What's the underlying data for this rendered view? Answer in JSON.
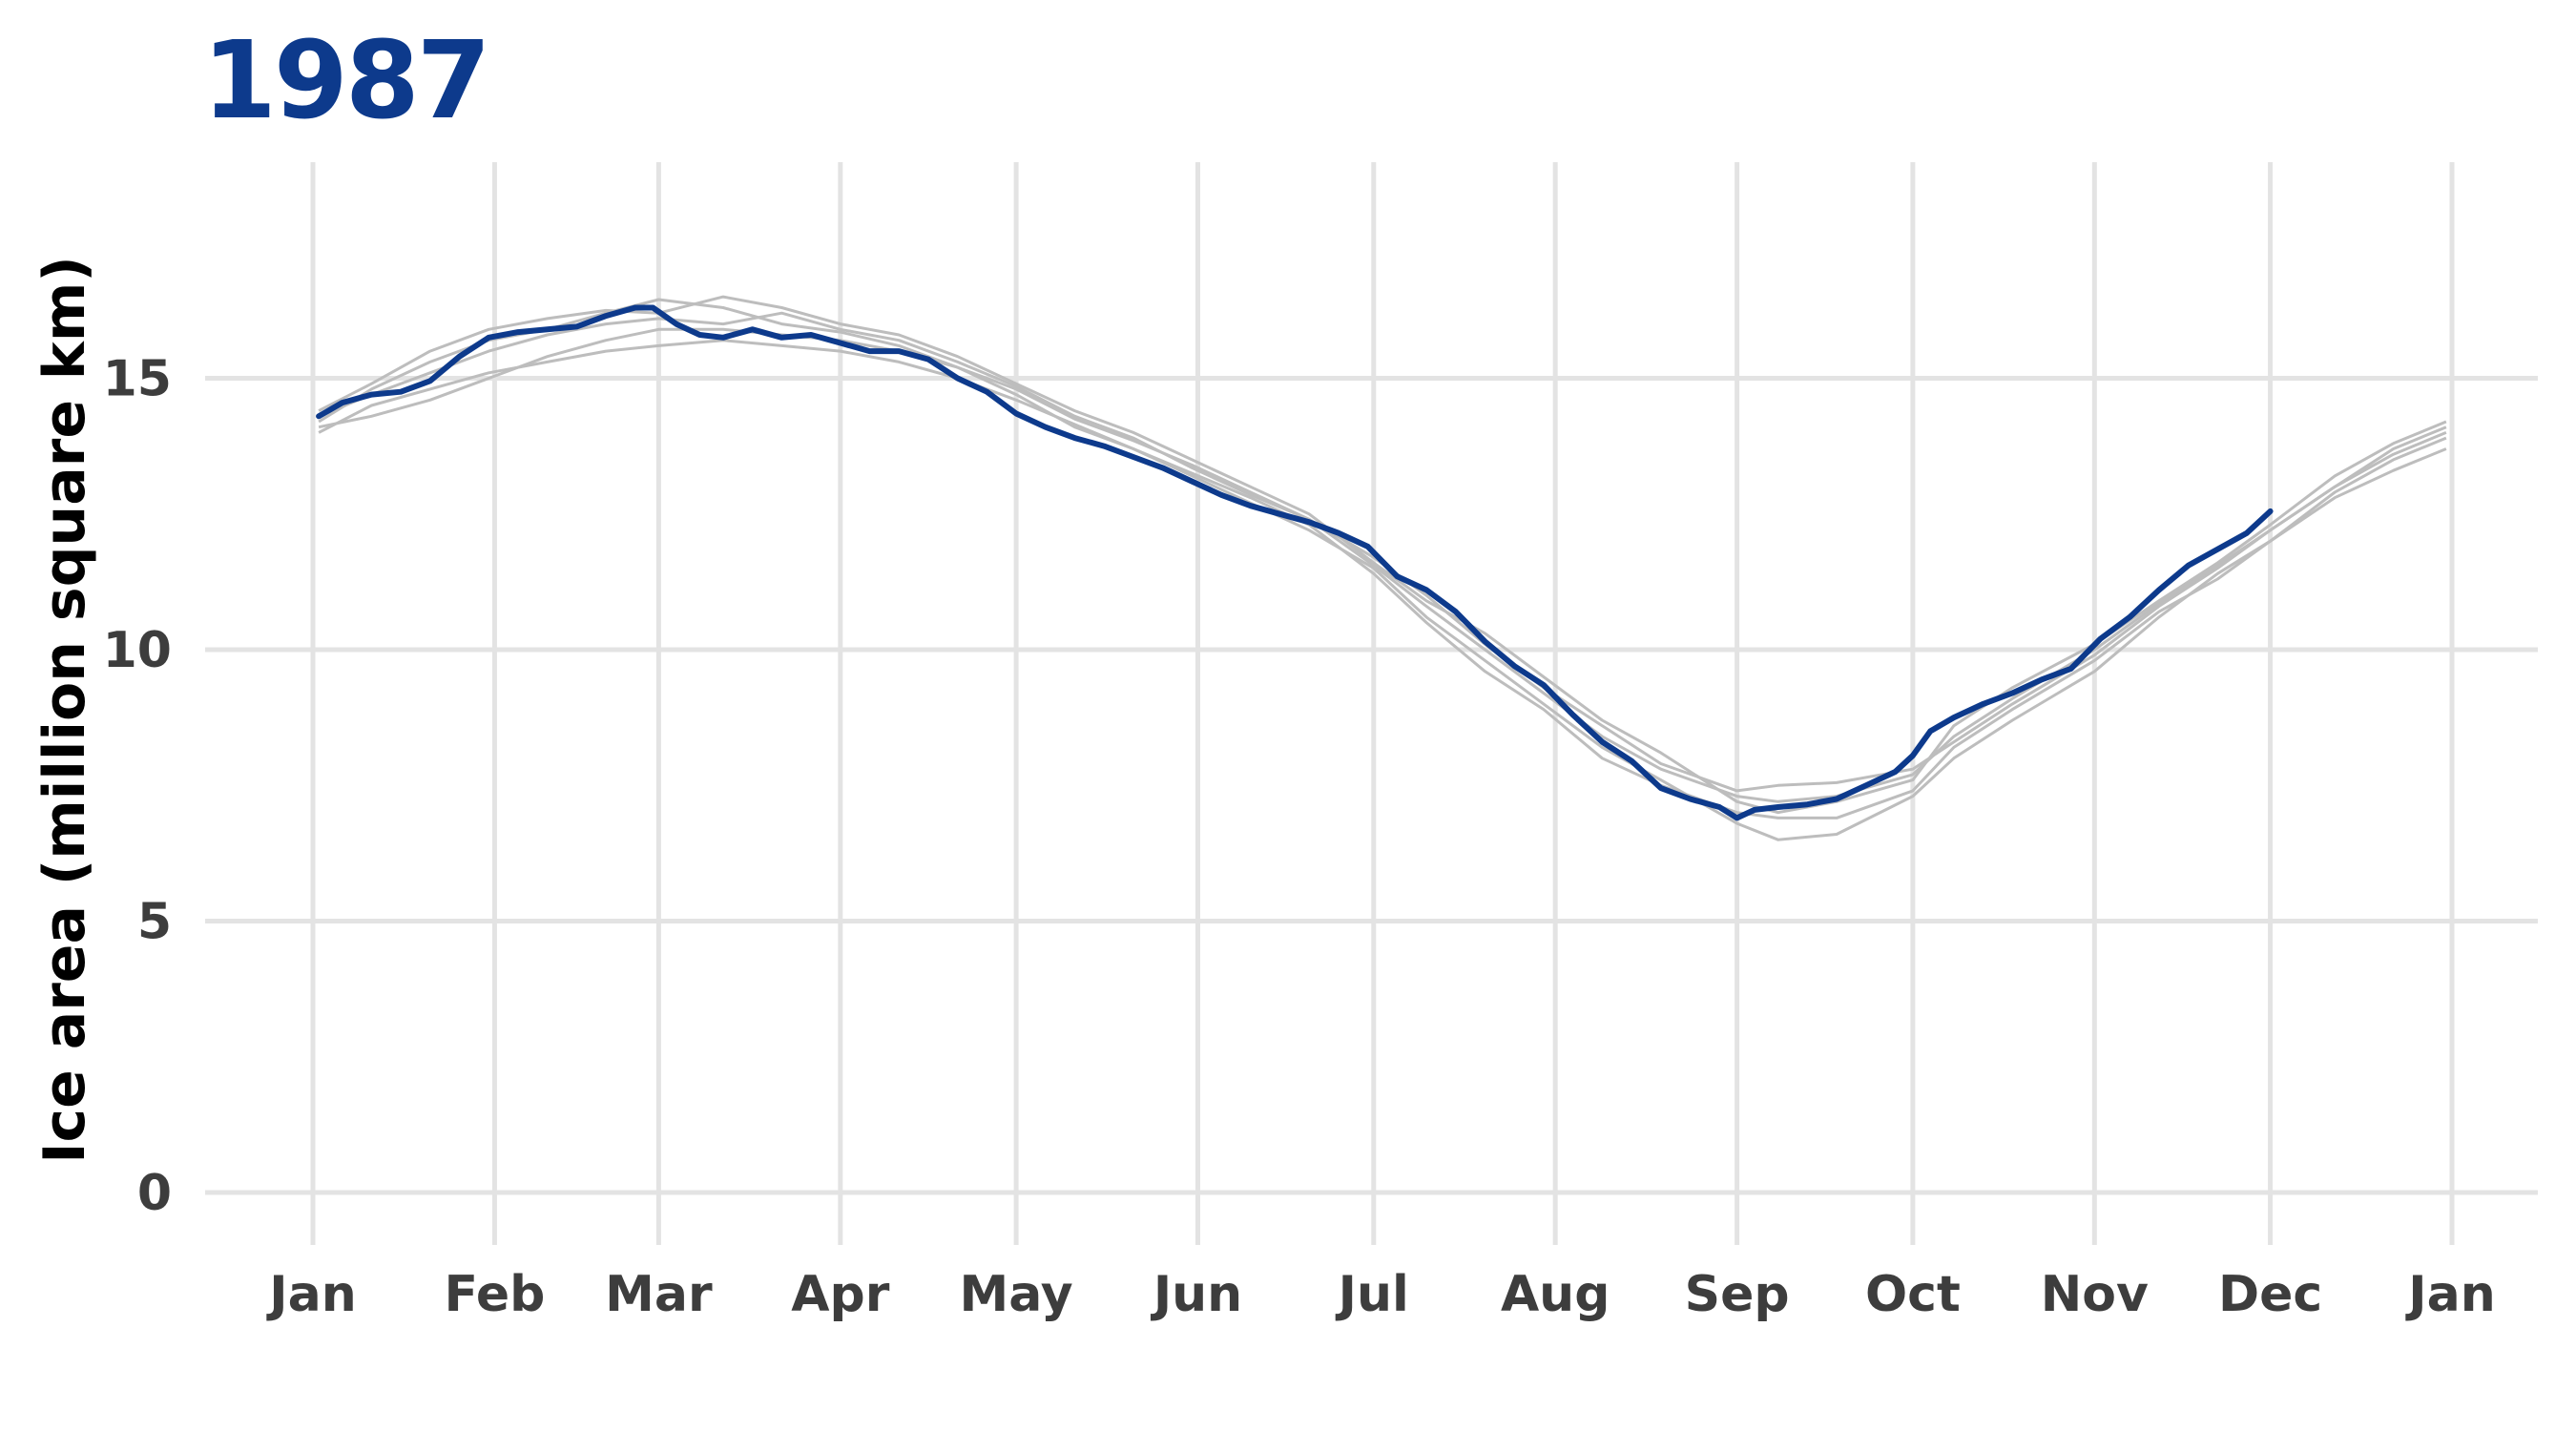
{
  "colors": {
    "title": "#0d3a8c",
    "highlight": "#0d3a8c",
    "background_series": "#bdbdbd",
    "grid": "#e3e3e3"
  },
  "chart_data": {
    "type": "line",
    "title": "1987",
    "xlabel": "",
    "ylabel": "Ice area (million square km)",
    "xlim": [
      0,
      365
    ],
    "ylim": [
      -1,
      18.7
    ],
    "grid": true,
    "legend": "none",
    "x_ticks": [
      {
        "label": "Jan",
        "value": 0
      },
      {
        "label": "Feb",
        "value": 31
      },
      {
        "label": "Mar",
        "value": 59
      },
      {
        "label": "Apr",
        "value": 90
      },
      {
        "label": "May",
        "value": 120
      },
      {
        "label": "Jun",
        "value": 151
      },
      {
        "label": "Jul",
        "value": 181
      },
      {
        "label": "Aug",
        "value": 212
      },
      {
        "label": "Sep",
        "value": 243
      },
      {
        "label": "Oct",
        "value": 273
      },
      {
        "label": "Nov",
        "value": 304
      },
      {
        "label": "Dec",
        "value": 334
      },
      {
        "label": "Jan",
        "value": 365
      }
    ],
    "y_ticks": [
      {
        "label": "0",
        "value": 0
      },
      {
        "label": "5",
        "value": 5
      },
      {
        "label": "10",
        "value": 10
      },
      {
        "label": "15",
        "value": 15
      }
    ],
    "series": [
      {
        "highlight": true,
        "x": [
          1,
          5,
          10,
          15,
          20,
          25,
          30,
          35,
          40,
          45,
          50,
          55,
          58,
          62,
          66,
          70,
          75,
          80,
          85,
          90,
          95,
          100,
          105,
          110,
          115,
          120,
          125,
          130,
          135,
          140,
          145,
          150,
          155,
          160,
          165,
          170,
          175,
          180,
          185,
          190,
          195,
          200,
          205,
          210,
          215,
          220,
          225,
          230,
          235,
          240,
          243,
          246,
          250,
          255,
          260,
          265,
          270,
          273,
          276,
          280,
          285,
          290,
          295,
          300,
          305,
          310,
          315,
          320,
          325,
          330,
          334
        ],
        "y": [
          14.3,
          14.55,
          14.7,
          14.75,
          14.95,
          15.4,
          15.75,
          15.85,
          15.9,
          15.95,
          16.15,
          16.3,
          16.3,
          16.0,
          15.8,
          15.75,
          15.9,
          15.75,
          15.8,
          15.65,
          15.5,
          15.5,
          15.35,
          15.0,
          14.75,
          14.35,
          14.1,
          13.9,
          13.75,
          13.55,
          13.35,
          13.1,
          12.85,
          12.65,
          12.5,
          12.35,
          12.15,
          11.9,
          11.35,
          11.1,
          10.7,
          10.15,
          9.7,
          9.35,
          8.8,
          8.3,
          7.95,
          7.45,
          7.25,
          7.1,
          6.9,
          7.05,
          7.1,
          7.15,
          7.25,
          7.5,
          7.75,
          8.05,
          8.5,
          8.75,
          9.0,
          9.2,
          9.45,
          9.65,
          10.2,
          10.6,
          11.1,
          11.55,
          11.85,
          12.15,
          12.55
        ]
      },
      {
        "x": [
          1,
          10,
          20,
          30,
          40,
          50,
          59,
          70,
          80,
          90,
          100,
          110,
          120,
          130,
          140,
          150,
          160,
          170,
          181,
          190,
          200,
          210,
          220,
          230,
          243,
          250,
          260,
          273,
          280,
          290,
          304,
          315,
          325,
          334,
          345,
          355,
          364
        ],
        "y": [
          14.2,
          14.8,
          15.3,
          15.7,
          15.9,
          16.2,
          16.45,
          16.3,
          16.0,
          15.85,
          15.6,
          15.2,
          14.8,
          14.25,
          13.85,
          13.4,
          12.9,
          12.4,
          11.7,
          11.0,
          10.1,
          9.3,
          8.6,
          7.9,
          7.4,
          7.5,
          7.55,
          7.8,
          8.3,
          9.0,
          9.9,
          10.8,
          11.5,
          12.2,
          13.0,
          13.6,
          14.0
        ]
      },
      {
        "x": [
          1,
          10,
          20,
          30,
          40,
          50,
          59,
          70,
          80,
          90,
          100,
          110,
          120,
          130,
          140,
          150,
          160,
          170,
          181,
          190,
          200,
          210,
          220,
          230,
          243,
          250,
          260,
          273,
          280,
          290,
          304,
          315,
          325,
          334,
          345,
          355,
          364
        ],
        "y": [
          14.0,
          14.5,
          14.8,
          15.1,
          15.3,
          15.5,
          15.6,
          15.7,
          15.6,
          15.5,
          15.3,
          15.0,
          14.6,
          14.15,
          13.7,
          13.2,
          12.7,
          12.2,
          11.5,
          10.6,
          9.8,
          9.0,
          8.2,
          7.6,
          6.8,
          6.5,
          6.6,
          7.3,
          8.0,
          8.7,
          9.6,
          10.6,
          11.4,
          12.0,
          12.8,
          13.3,
          13.7
        ]
      },
      {
        "x": [
          1,
          10,
          20,
          30,
          40,
          50,
          59,
          70,
          80,
          90,
          100,
          110,
          120,
          130,
          140,
          150,
          160,
          170,
          181,
          190,
          200,
          210,
          220,
          230,
          243,
          250,
          260,
          273,
          280,
          290,
          304,
          315,
          325,
          334,
          345,
          355,
          364
        ],
        "y": [
          14.4,
          14.9,
          15.5,
          15.9,
          16.1,
          16.25,
          16.2,
          16.5,
          16.3,
          16.0,
          15.8,
          15.4,
          14.9,
          14.4,
          14.0,
          13.5,
          13.0,
          12.5,
          11.6,
          10.9,
          10.3,
          9.5,
          8.7,
          8.1,
          7.2,
          7.0,
          7.2,
          7.6,
          8.6,
          9.3,
          10.1,
          10.9,
          11.6,
          12.3,
          13.2,
          13.8,
          14.2
        ]
      },
      {
        "x": [
          1,
          10,
          20,
          30,
          40,
          50,
          59,
          70,
          80,
          90,
          100,
          110,
          120,
          130,
          140,
          150,
          160,
          170,
          181,
          190,
          200,
          210,
          220,
          230,
          243,
          250,
          260,
          273,
          280,
          290,
          304,
          315,
          325,
          334,
          345,
          355,
          364
        ],
        "y": [
          14.1,
          14.3,
          14.6,
          15.0,
          15.4,
          15.7,
          15.9,
          15.9,
          15.8,
          15.7,
          15.5,
          15.2,
          14.7,
          14.1,
          13.7,
          13.25,
          12.8,
          12.3,
          11.4,
          10.5,
          9.6,
          8.9,
          8.0,
          7.5,
          7.0,
          6.9,
          6.9,
          7.4,
          8.2,
          8.9,
          9.8,
          10.7,
          11.3,
          12.0,
          12.9,
          13.5,
          13.9
        ]
      },
      {
        "x": [
          1,
          10,
          20,
          30,
          40,
          50,
          59,
          70,
          80,
          90,
          100,
          110,
          120,
          130,
          140,
          150,
          160,
          170,
          181,
          190,
          200,
          210,
          220,
          230,
          243,
          250,
          260,
          273,
          280,
          290,
          304,
          315,
          325,
          334,
          345,
          355,
          364
        ],
        "y": [
          14.3,
          14.7,
          15.1,
          15.5,
          15.8,
          16.0,
          16.1,
          16.0,
          16.2,
          15.9,
          15.7,
          15.3,
          14.85,
          14.3,
          13.9,
          13.35,
          12.85,
          12.4,
          11.55,
          10.8,
          10.0,
          9.2,
          8.4,
          7.8,
          7.3,
          7.2,
          7.3,
          7.7,
          8.4,
          9.1,
          10.0,
          10.85,
          11.55,
          12.2,
          13.0,
          13.7,
          14.1
        ]
      }
    ]
  }
}
